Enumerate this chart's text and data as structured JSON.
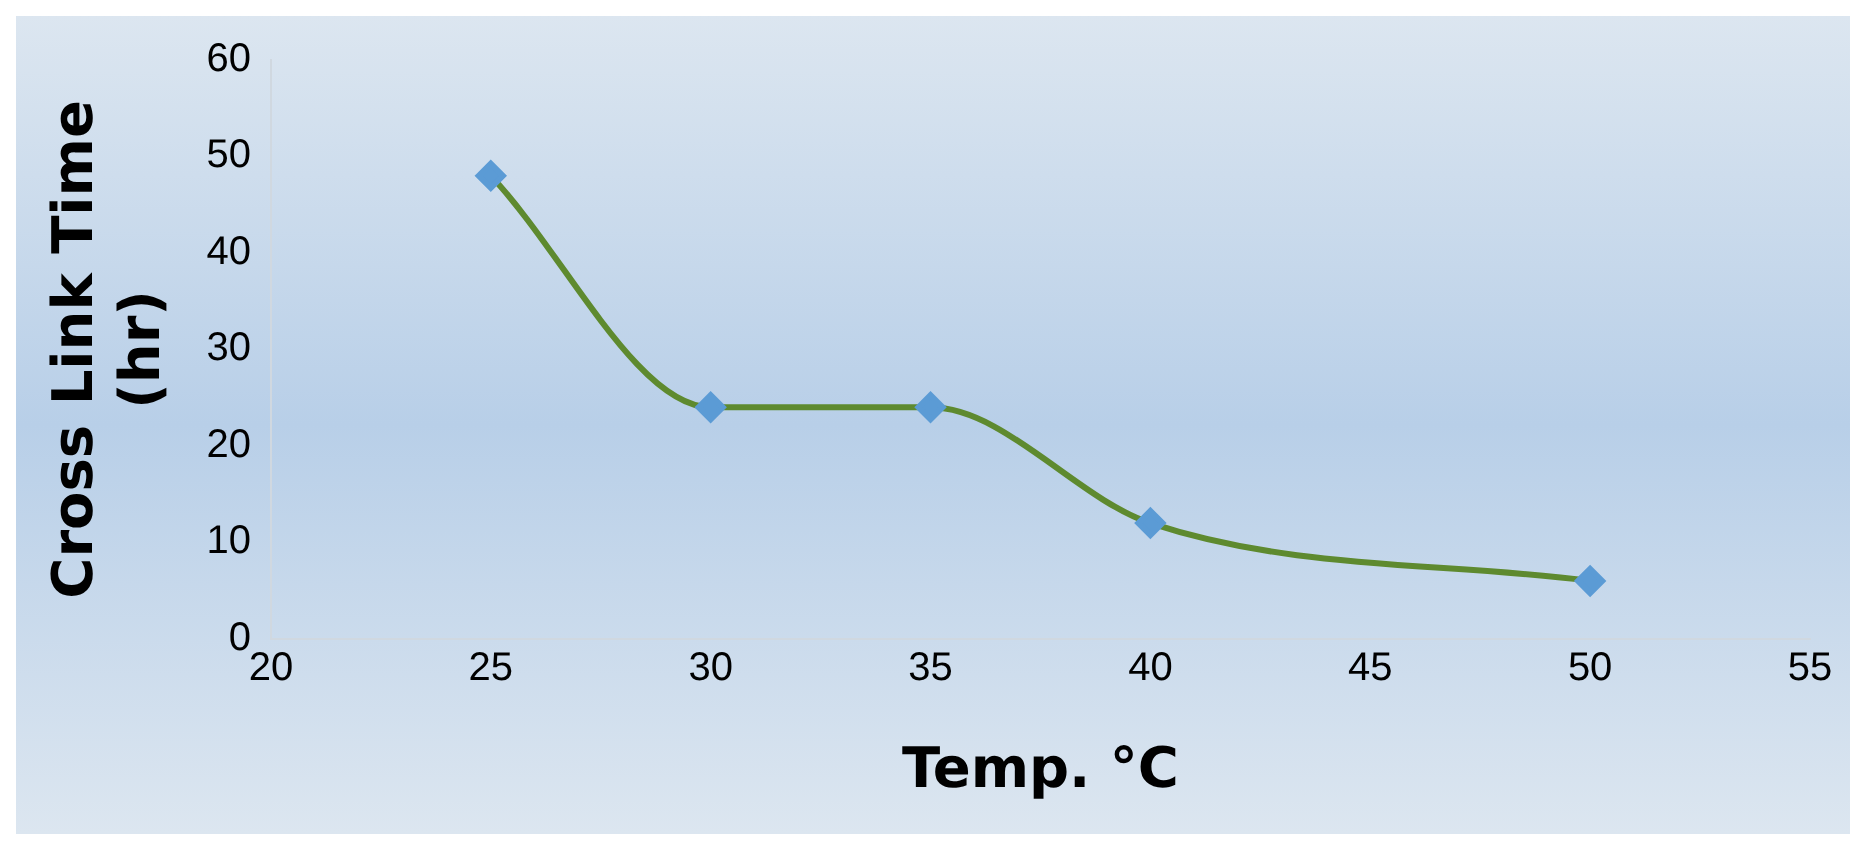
{
  "chart_data": {
    "type": "line",
    "xlabel": "Temp. °C",
    "ylabel": "Cross Link Time\n(hr)",
    "x": [
      25,
      30,
      35,
      40,
      50
    ],
    "marker": "diamond",
    "line_style": "solid",
    "series": [
      {
        "color": "#5e8a2f",
        "values": [
          48,
          24,
          24,
          12,
          6
        ]
      }
    ],
    "xlim": [
      20,
      55
    ],
    "xticks": [
      20,
      25,
      30,
      35,
      40,
      45,
      50,
      55
    ],
    "ylim": [
      0,
      60
    ],
    "yticks": [
      0,
      10,
      20,
      30,
      40,
      50,
      60
    ]
  }
}
